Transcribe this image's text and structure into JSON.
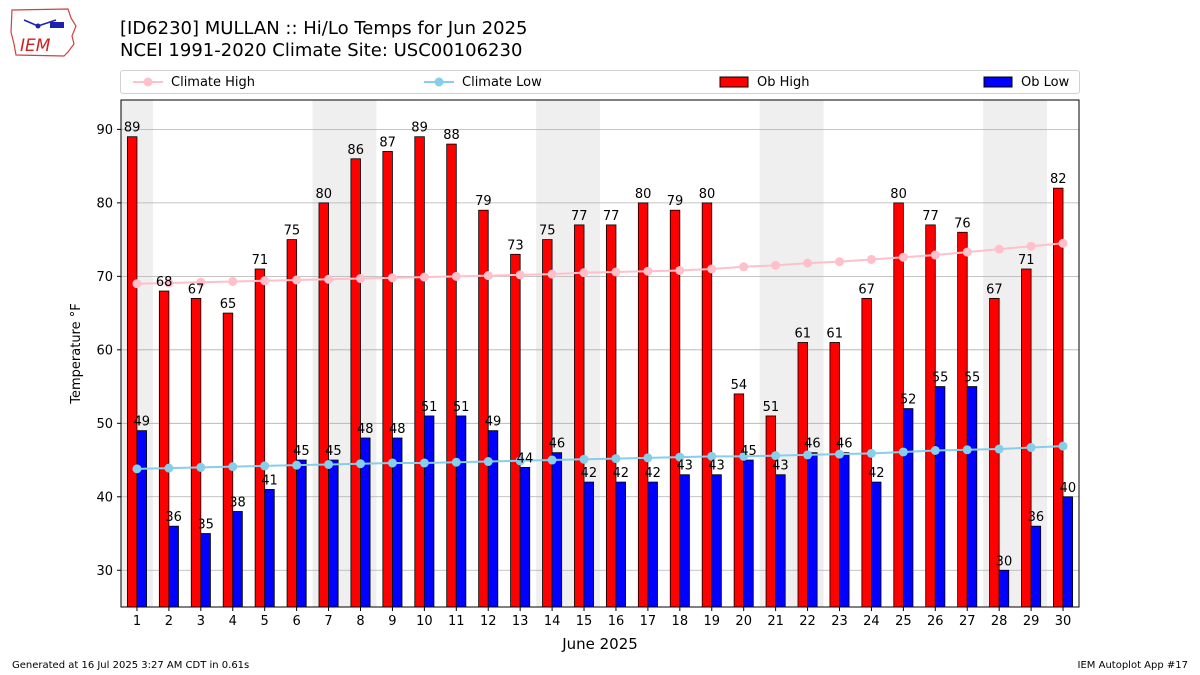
{
  "logo": {
    "text": "IEM",
    "icon": "iowa-state-outline-logo"
  },
  "header": {
    "title": "[ID6230] MULLAN :: Hi/Lo Temps for Jun 2025",
    "subtitle": "NCEI 1991-2020 Climate Site: USC00106230"
  },
  "footer": {
    "generated": "Generated at 16 Jul 2025 3:27 AM CDT in 0.61s",
    "app": "IEM Autoplot App #17"
  },
  "colors": {
    "ob_high": "#ff0000",
    "ob_low": "#0000ff",
    "climate_high": "#ffc0cb",
    "climate_low": "#87ceeb",
    "weekend_shade": "#efefef"
  },
  "chart_data": {
    "type": "bar",
    "title": "[ID6230] MULLAN :: Hi/Lo Temps for Jun 2025",
    "xlabel": "June 2025",
    "ylabel": "Temperature °F",
    "ylim": [
      25,
      94
    ],
    "yticks": [
      30,
      40,
      50,
      60,
      70,
      80,
      90
    ],
    "grid": "horizontal",
    "legend_position": "top",
    "categories": [
      "1",
      "2",
      "3",
      "4",
      "5",
      "6",
      "7",
      "8",
      "9",
      "10",
      "11",
      "12",
      "13",
      "14",
      "15",
      "16",
      "17",
      "18",
      "19",
      "20",
      "21",
      "22",
      "23",
      "24",
      "25",
      "26",
      "27",
      "28",
      "29",
      "30"
    ],
    "shaded_days": [
      1,
      7,
      8,
      14,
      15,
      21,
      22,
      28,
      29
    ],
    "series": [
      {
        "name": "Ob High",
        "kind": "bar",
        "values": [
          89,
          68,
          67,
          65,
          71,
          75,
          80,
          86,
          87,
          89,
          88,
          79,
          73,
          75,
          77,
          77,
          80,
          79,
          80,
          54,
          51,
          61,
          61,
          67,
          80,
          77,
          76,
          67,
          71,
          82
        ]
      },
      {
        "name": "Ob Low",
        "kind": "bar",
        "values": [
          49,
          36,
          35,
          38,
          41,
          45,
          45,
          48,
          48,
          51,
          51,
          49,
          44,
          46,
          42,
          42,
          42,
          43,
          43,
          45,
          43,
          46,
          46,
          42,
          52,
          55,
          55,
          30,
          36,
          40
        ]
      },
      {
        "name": "Climate High",
        "kind": "line",
        "values": [
          69.0,
          69.1,
          69.2,
          69.3,
          69.4,
          69.5,
          69.6,
          69.7,
          69.8,
          69.9,
          70.0,
          70.1,
          70.2,
          70.3,
          70.5,
          70.6,
          70.7,
          70.8,
          71.0,
          71.3,
          71.5,
          71.8,
          72.0,
          72.3,
          72.6,
          72.9,
          73.3,
          73.7,
          74.1,
          74.5
        ]
      },
      {
        "name": "Climate Low",
        "kind": "line",
        "values": [
          43.8,
          43.9,
          44.0,
          44.1,
          44.2,
          44.3,
          44.4,
          44.5,
          44.6,
          44.6,
          44.7,
          44.8,
          44.9,
          45.0,
          45.1,
          45.2,
          45.3,
          45.4,
          45.5,
          45.5,
          45.6,
          45.7,
          45.8,
          45.9,
          46.1,
          46.3,
          46.4,
          46.5,
          46.7,
          46.9
        ]
      }
    ]
  }
}
